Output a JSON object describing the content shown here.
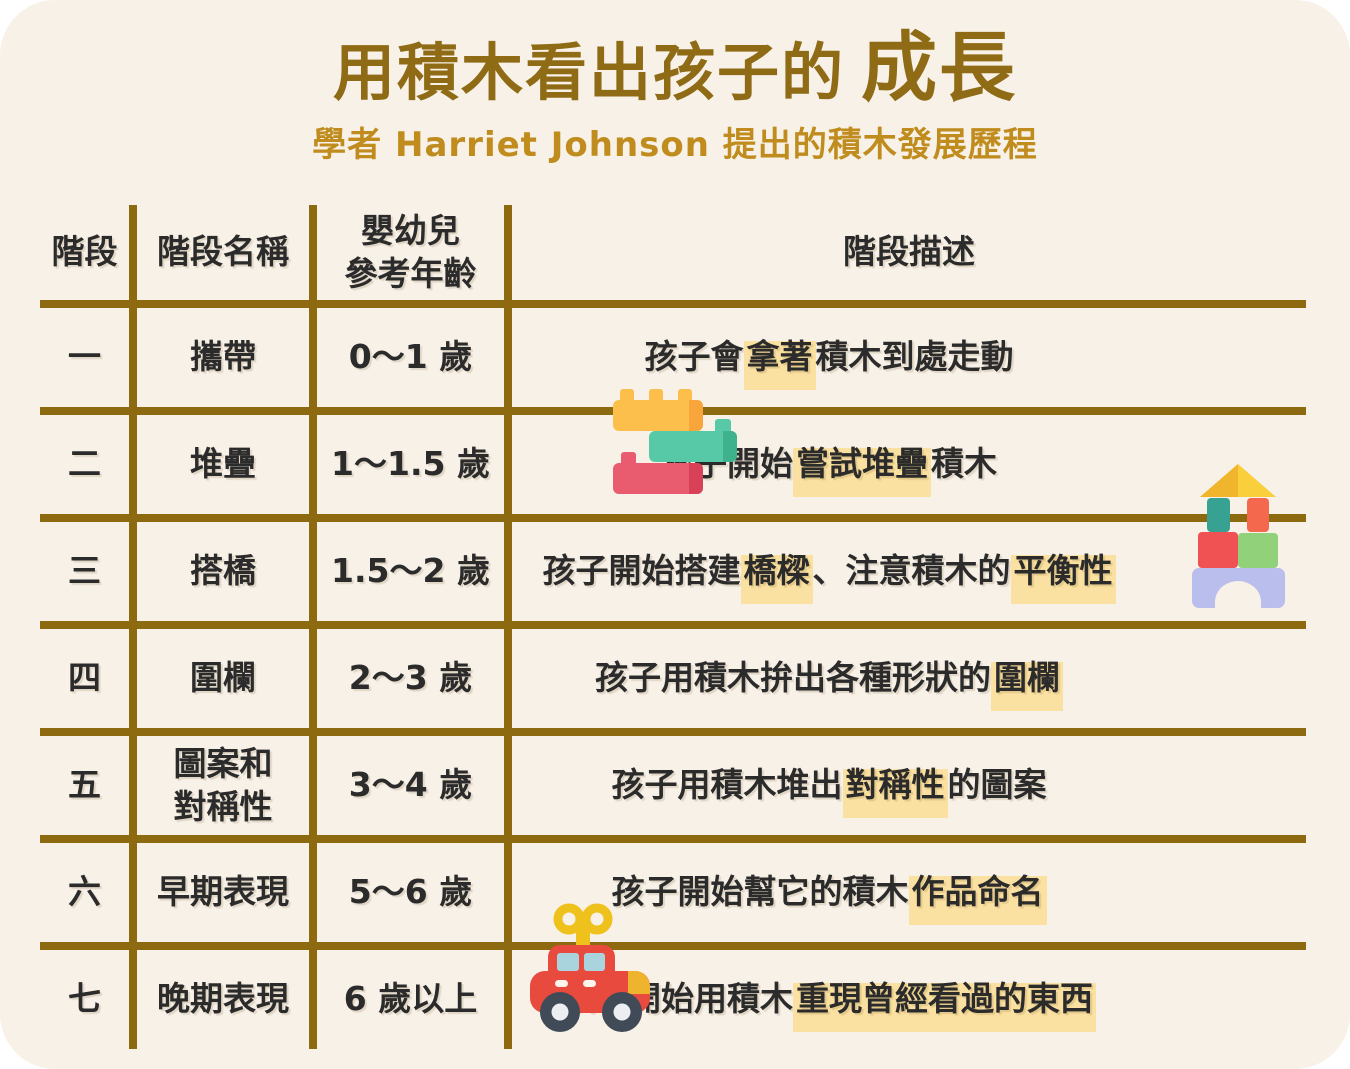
{
  "page": {
    "background_color": "#f8f1e8",
    "outer_background": "#ffffff",
    "table_line_color": "#8d690f",
    "highlight_color": "#fbe1a1"
  },
  "header": {
    "title_main": "用積木看出孩子的",
    "title_accent": "成長",
    "subtitle": "學者 Harriet Johnson 提出的積木發展歷程",
    "title_color": "#8f6b16",
    "subtitle_color": "#bf8c1d"
  },
  "table": {
    "columns": [
      "階段",
      "階段名稱",
      "嬰幼兒\n參考年齡",
      "階段描述"
    ],
    "rows": [
      {
        "stage": "一",
        "name": "攜帶",
        "age": "0～1 歲",
        "description": [
          {
            "text": "孩子會",
            "hl": false
          },
          {
            "text": "拿著",
            "hl": true
          },
          {
            "text": "積木到處走動",
            "hl": false
          }
        ]
      },
      {
        "stage": "二",
        "name": "堆疊",
        "age": "1～1.5 歲",
        "description": [
          {
            "text": "孩子開始",
            "hl": false
          },
          {
            "text": "嘗試堆疊",
            "hl": true
          },
          {
            "text": "積木",
            "hl": false
          }
        ]
      },
      {
        "stage": "三",
        "name": "搭橋",
        "age": "1.5～2 歲",
        "description": [
          {
            "text": "孩子開始搭建",
            "hl": false
          },
          {
            "text": "橋樑",
            "hl": true
          },
          {
            "text": "、注意積木的",
            "hl": false
          },
          {
            "text": "平衡性",
            "hl": true
          }
        ]
      },
      {
        "stage": "四",
        "name": "圍欄",
        "age": "2～3 歲",
        "description": [
          {
            "text": "孩子用積木拚出各種形狀的",
            "hl": false
          },
          {
            "text": "圍欄",
            "hl": true
          }
        ]
      },
      {
        "stage": "五",
        "name": "圖案和\n對稱性",
        "age": "3～4 歲",
        "description": [
          {
            "text": "孩子用積木堆出",
            "hl": false
          },
          {
            "text": "對稱性",
            "hl": true
          },
          {
            "text": "的圖案",
            "hl": false
          }
        ]
      },
      {
        "stage": "六",
        "name": "早期表現",
        "age": "5～6 歲",
        "description": [
          {
            "text": "孩子開始幫它的積木",
            "hl": false
          },
          {
            "text": "作品命名",
            "hl": true
          }
        ]
      },
      {
        "stage": "七",
        "name": "晚期表現",
        "age": "6 歲以上",
        "description": [
          {
            "text": "孩子開始用積木",
            "hl": false
          },
          {
            "text": "重現曾經看過的東西",
            "hl": true
          }
        ]
      }
    ]
  },
  "icons": {
    "lego_bricks": {
      "name": "lego-bricks-icon",
      "colors": {
        "yellow": "#fcbf4b",
        "yellow_shade": "#f8a63c",
        "teal": "#57c9a6",
        "teal_shade": "#3db28d",
        "red": "#e95c70",
        "red_shade": "#d94158"
      }
    },
    "block_house": {
      "name": "block-house-icon",
      "colors": {
        "roof": "#f9cf3c",
        "roof_shade": "#f0b52c",
        "teal": "#38a292",
        "orange": "#f4694d",
        "red": "#f05253",
        "green": "#90d179",
        "lavender": "#babeec"
      }
    },
    "wind_up_car": {
      "name": "wind-up-car-icon",
      "colors": {
        "body": "#e84a3d",
        "key": "#efc11c",
        "window": "#aad4dd",
        "wheel": "#414b58",
        "hub": "#eceff1",
        "dash": "#fdf6ec",
        "accent": "#efb42d"
      }
    }
  }
}
